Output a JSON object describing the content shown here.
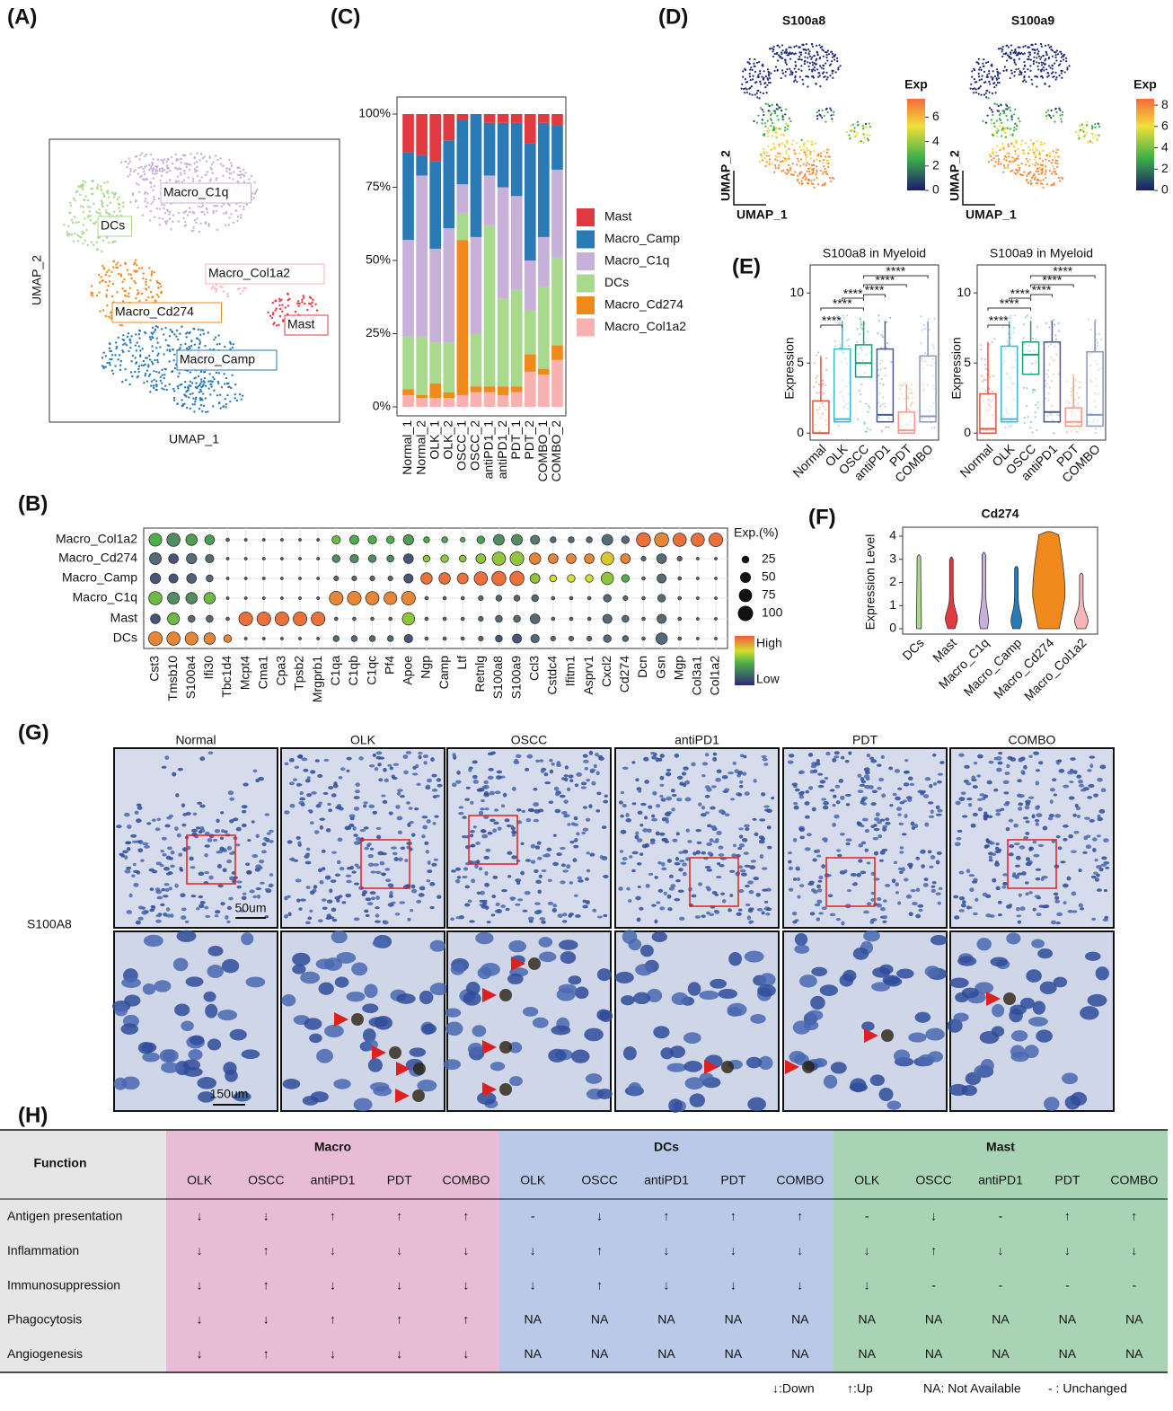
{
  "panel_labels": [
    "(A)",
    "(B)",
    "(C)",
    "(D)",
    "(E)",
    "(F)",
    "(G)",
    "(H)"
  ],
  "umap": {
    "x_label": "UMAP_1",
    "y_label": "UMAP_2",
    "clusters": [
      {
        "name": "Macro_C1q",
        "color": "#c7b1d9"
      },
      {
        "name": "DCs",
        "color": "#a9d98c"
      },
      {
        "name": "Macro_Col1a2",
        "color": "#f5b5b5"
      },
      {
        "name": "Macro_Cd274",
        "color": "#f08a1c"
      },
      {
        "name": "Mast",
        "color": "#e0393f"
      },
      {
        "name": "Macro_Camp",
        "color": "#2a7ab5"
      }
    ]
  },
  "dotplot": {
    "rows": [
      "Macro_Col1a2",
      "Macro_Cd274",
      "Macro_Camp",
      "Macro_C1q",
      "Mast",
      "DCs"
    ],
    "genes": [
      "Cst3",
      "Tmsb10",
      "S100a4",
      "Ifi30",
      "Tbc1d4",
      "Mcpt4",
      "Cma1",
      "Cpa3",
      "Tpsb2",
      "Mrgprb1",
      "C1qa",
      "C1qb",
      "C1qc",
      "Pf4",
      "Apoe",
      "Ngp",
      "Camp",
      "Ltf",
      "Retnlg",
      "S100a8",
      "S100a9",
      "Ccl3",
      "Cstdc4",
      "Ifitm1",
      "Asprv1",
      "Cxcl2",
      "Cd274",
      "Dcn",
      "Gsn",
      "Mgp",
      "Col3a1",
      "Col1a2"
    ],
    "pct": [
      [
        70,
        75,
        55,
        40,
        5,
        3,
        3,
        3,
        3,
        3,
        30,
        35,
        30,
        25,
        45,
        15,
        15,
        10,
        25,
        50,
        50,
        35,
        15,
        15,
        15,
        50,
        25,
        85,
        85,
        75,
        75,
        80
      ],
      [
        60,
        40,
        45,
        30,
        3,
        3,
        3,
        3,
        3,
        3,
        25,
        30,
        25,
        20,
        40,
        20,
        25,
        20,
        40,
        75,
        80,
        55,
        40,
        40,
        40,
        70,
        40,
        10,
        40,
        10,
        3,
        3
      ],
      [
        45,
        35,
        40,
        20,
        3,
        3,
        3,
        3,
        3,
        3,
        10,
        10,
        10,
        10,
        35,
        55,
        55,
        50,
        75,
        85,
        85,
        40,
        20,
        25,
        25,
        65,
        25,
        5,
        35,
        5,
        3,
        3
      ],
      [
        75,
        60,
        55,
        55,
        3,
        3,
        3,
        3,
        3,
        3,
        80,
        80,
        75,
        70,
        80,
        5,
        5,
        5,
        10,
        15,
        15,
        20,
        5,
        5,
        5,
        25,
        10,
        5,
        25,
        5,
        3,
        3
      ],
      [
        40,
        60,
        20,
        20,
        5,
        80,
        80,
        80,
        80,
        80,
        5,
        5,
        5,
        5,
        65,
        5,
        5,
        5,
        10,
        20,
        20,
        40,
        5,
        5,
        5,
        35,
        20,
        5,
        35,
        5,
        3,
        3
      ],
      [
        80,
        75,
        70,
        55,
        25,
        3,
        3,
        3,
        3,
        3,
        15,
        15,
        15,
        15,
        30,
        5,
        5,
        5,
        10,
        20,
        35,
        30,
        10,
        10,
        10,
        25,
        15,
        5,
        55,
        5,
        3,
        3
      ]
    ],
    "exp": [
      [
        0.5,
        0.4,
        0.45,
        0.45,
        0.3,
        0.3,
        0.3,
        0.3,
        0.3,
        0.3,
        0.55,
        0.5,
        0.5,
        0.5,
        0.45,
        0.5,
        0.5,
        0.5,
        0.45,
        0.4,
        0.4,
        0.35,
        0.3,
        0.3,
        0.3,
        0.3,
        0.3,
        0.95,
        0.9,
        0.95,
        0.95,
        0.95
      ],
      [
        0.3,
        0.2,
        0.3,
        0.3,
        0.3,
        0.3,
        0.3,
        0.3,
        0.3,
        0.3,
        0.4,
        0.4,
        0.4,
        0.4,
        0.2,
        0.6,
        0.6,
        0.6,
        0.6,
        0.6,
        0.6,
        0.9,
        0.9,
        0.9,
        0.9,
        0.75,
        0.9,
        0.3,
        0.3,
        0.3,
        0.3,
        0.3
      ],
      [
        0.2,
        0.2,
        0.25,
        0.3,
        0.3,
        0.3,
        0.3,
        0.3,
        0.3,
        0.3,
        0.3,
        0.3,
        0.3,
        0.3,
        0.2,
        0.95,
        0.95,
        0.95,
        0.95,
        0.95,
        0.95,
        0.6,
        0.7,
        0.7,
        0.7,
        0.6,
        0.5,
        0.3,
        0.3,
        0.3,
        0.3,
        0.3
      ],
      [
        0.55,
        0.4,
        0.4,
        0.55,
        0.3,
        0.3,
        0.3,
        0.3,
        0.3,
        0.3,
        0.9,
        0.9,
        0.9,
        0.9,
        0.9,
        0.3,
        0.3,
        0.3,
        0.3,
        0.3,
        0.3,
        0.3,
        0.3,
        0.3,
        0.3,
        0.3,
        0.3,
        0.3,
        0.3,
        0.3,
        0.3,
        0.3
      ],
      [
        0.2,
        0.55,
        0.3,
        0.3,
        0.3,
        0.95,
        0.95,
        0.95,
        0.95,
        0.95,
        0.3,
        0.3,
        0.3,
        0.3,
        0.6,
        0.3,
        0.3,
        0.3,
        0.3,
        0.3,
        0.3,
        0.3,
        0.3,
        0.3,
        0.3,
        0.3,
        0.3,
        0.3,
        0.3,
        0.3,
        0.3,
        0.3
      ],
      [
        0.9,
        0.9,
        0.9,
        0.9,
        0.9,
        0.3,
        0.3,
        0.3,
        0.3,
        0.3,
        0.3,
        0.3,
        0.3,
        0.3,
        0.2,
        0.3,
        0.3,
        0.3,
        0.3,
        0.2,
        0.2,
        0.3,
        0.3,
        0.3,
        0.3,
        0.3,
        0.3,
        0.3,
        0.3,
        0.3,
        0.3,
        0.3
      ]
    ],
    "size_title": "Exp.(%)",
    "size_ticks": [
      25,
      50,
      75,
      100
    ],
    "color_high": "High",
    "color_low": "Low"
  },
  "chart_data": [
    {
      "type": "stacked_bar",
      "categories": [
        "Normal_1",
        "Normal_2",
        "OLK_1",
        "OLK_2",
        "OSCC_1",
        "OSCC_2",
        "antiPD1_1",
        "antiPD1_2",
        "PDT_1",
        "PDT_2",
        "COMBO_1",
        "COMBO_2"
      ],
      "ylim": [
        0,
        100
      ],
      "yticks": [
        {
          "value": 0,
          "label": "0%"
        },
        {
          "value": 25,
          "label": "25%"
        },
        {
          "value": 50,
          "label": "50%"
        },
        {
          "value": 75,
          "label": "75%"
        },
        {
          "value": 100,
          "label": "100%"
        }
      ],
      "series": [
        {
          "name": "Mast",
          "color": "#e0393f",
          "values": [
            13,
            14,
            16,
            9,
            2,
            0,
            3,
            3,
            3,
            10,
            3,
            4
          ]
        },
        {
          "name": "Macro_Camp",
          "color": "#2a7ab5",
          "values": [
            30,
            7,
            30,
            30,
            22,
            42,
            18,
            22,
            25,
            40,
            39,
            15
          ]
        },
        {
          "name": "Macro_C1q",
          "color": "#c7b1d9",
          "values": [
            33,
            55,
            32,
            39,
            10,
            33,
            17,
            38,
            32,
            17,
            17,
            30
          ]
        },
        {
          "name": "DCs",
          "color": "#a9d98c",
          "values": [
            18,
            20,
            14,
            17,
            9,
            18,
            55,
            30,
            33,
            15,
            28,
            30
          ]
        },
        {
          "name": "Macro_Cd274",
          "color": "#f08a1c",
          "values": [
            2,
            1,
            5,
            2,
            53,
            2,
            2,
            3,
            2,
            6,
            2,
            5
          ]
        },
        {
          "name": "Macro_Col1a2",
          "color": "#f7b1b1",
          "values": [
            4,
            3,
            3,
            3,
            4,
            5,
            5,
            4,
            5,
            12,
            11,
            16
          ]
        }
      ]
    },
    {
      "type": "box",
      "title": "S100a8 in Myeloid",
      "y_label": "Expression",
      "ylim": [
        -0.5,
        12
      ],
      "yticks": [
        0,
        5,
        10
      ],
      "categories": [
        "Normal",
        "OLK",
        "OSCC",
        "antiPD1",
        "PDT",
        "COMBO"
      ],
      "colors": [
        "#e8533c",
        "#3cb8d0",
        "#1a9e77",
        "#4b5a8e",
        "#f39b86",
        "#8a95bd"
      ],
      "q1": [
        0,
        0.8,
        4,
        0.8,
        0,
        0.8
      ],
      "median": [
        0,
        1,
        5,
        1.3,
        0.2,
        1.2
      ],
      "q3": [
        2.3,
        6,
        6.3,
        6,
        1.5,
        5.5
      ],
      "whisker_high": [
        5.5,
        8,
        8,
        8,
        3.5,
        8
      ],
      "comparisons": [
        {
          "pair": [
            "Normal",
            "OLK"
          ],
          "label": "****"
        },
        {
          "pair": [
            "Normal",
            "OSCC"
          ],
          "label": "****"
        },
        {
          "pair": [
            "OLK",
            "OSCC"
          ],
          "label": "****"
        },
        {
          "pair": [
            "OSCC",
            "antiPD1"
          ],
          "label": "****"
        },
        {
          "pair": [
            "OSCC",
            "PDT"
          ],
          "label": "****"
        },
        {
          "pair": [
            "OSCC",
            "COMBO"
          ],
          "label": "****"
        }
      ]
    },
    {
      "type": "box",
      "title": "S100a9 in Myeloid",
      "y_label": "Expression",
      "ylim": [
        -0.5,
        12
      ],
      "yticks": [
        0,
        5,
        10
      ],
      "categories": [
        "Normal",
        "OLK",
        "OSCC",
        "antiPD1",
        "PDT",
        "COMBO"
      ],
      "colors": [
        "#e8533c",
        "#3cb8d0",
        "#1a9e77",
        "#4b5a8e",
        "#f39b86",
        "#8a95bd"
      ],
      "q1": [
        0,
        0.8,
        4.2,
        0.8,
        0.5,
        0.5
      ],
      "median": [
        0.3,
        1,
        5.6,
        1.5,
        0.8,
        1.3
      ],
      "q3": [
        2.8,
        6.2,
        6.5,
        6.5,
        1.8,
        5.8
      ],
      "whisker_high": [
        6.5,
        8,
        8,
        8,
        4,
        8
      ],
      "comparisons": [
        {
          "pair": [
            "Normal",
            "OLK"
          ],
          "label": "****"
        },
        {
          "pair": [
            "Normal",
            "OSCC"
          ],
          "label": "****"
        },
        {
          "pair": [
            "OLK",
            "OSCC"
          ],
          "label": "****"
        },
        {
          "pair": [
            "OSCC",
            "antiPD1"
          ],
          "label": "****"
        },
        {
          "pair": [
            "OSCC",
            "PDT"
          ],
          "label": "****"
        },
        {
          "pair": [
            "OSCC",
            "COMBO"
          ],
          "label": "****"
        }
      ]
    },
    {
      "type": "violin",
      "title": "Cd274",
      "y_label": "Expression Level",
      "ylim": [
        0,
        4.3
      ],
      "yticks": [
        0,
        1,
        2,
        3,
        4
      ],
      "categories": [
        "DCs",
        "Mast",
        "Macro_C1q",
        "Macro_Camp",
        "Macro_Cd274",
        "Macro_Col1a2"
      ],
      "colors": [
        "#a9d98c",
        "#e0393f",
        "#c7b1d9",
        "#2a7ab5",
        "#f08a1c",
        "#f5b5b5"
      ],
      "max": [
        3.2,
        3.1,
        3.3,
        2.7,
        4.2,
        2.4
      ]
    }
  ],
  "feature_plots": [
    {
      "title": "S100a8",
      "legend_title": "Exp",
      "lim": [
        0,
        7.5
      ],
      "ticks": [
        0,
        2,
        4,
        6
      ]
    },
    {
      "title": "S100a9",
      "legend_title": "Exp",
      "lim": [
        0,
        8.6
      ],
      "ticks": [
        0,
        2,
        4,
        6,
        8
      ]
    }
  ],
  "feature_axis": {
    "x_label": "UMAP_1",
    "y_label": "UMAP_2"
  },
  "histology": {
    "columns": [
      "Normal",
      "OLK",
      "OSCC",
      "antiPD1",
      "PDT",
      "COMBO"
    ],
    "row_label": "S100A8",
    "scale_top": "50um",
    "scale_bottom": "150um"
  },
  "table": {
    "header": "Function",
    "groups": [
      {
        "name": "Macro",
        "columns": [
          "OLK",
          "OSCC",
          "antiPD1",
          "PDT",
          "COMBO"
        ]
      },
      {
        "name": "DCs",
        "columns": [
          "OLK",
          "OSCC",
          "antiPD1",
          "PDT",
          "COMBO"
        ]
      },
      {
        "name": "Mast",
        "columns": [
          "OLK",
          "OSCC",
          "antiPD1",
          "PDT",
          "COMBO"
        ]
      }
    ],
    "rows": [
      {
        "function": "Antigen presentation",
        "cells": [
          "↓",
          "↓",
          "↑",
          "↑",
          "↑",
          "-",
          "↓",
          "↑",
          "↑",
          "↑",
          "-",
          "↓",
          "-",
          "↑",
          "↑"
        ]
      },
      {
        "function": "Inflammation",
        "cells": [
          "↓",
          "↑",
          "↓",
          "↓",
          "↓",
          "↓",
          "↑",
          "↓",
          "↓",
          "↓",
          "↓",
          "↑",
          "↓",
          "↓",
          "↓"
        ]
      },
      {
        "function": "Immunosuppression",
        "cells": [
          "↓",
          "↑",
          "↓",
          "↓",
          "↓",
          "↓",
          "↑",
          "↓",
          "↓",
          "↓",
          "↓",
          "-",
          "-",
          "-",
          "-"
        ]
      },
      {
        "function": "Phagocytosis",
        "cells": [
          "↓",
          "↓",
          "↑",
          "↑",
          "↑",
          "NA",
          "NA",
          "NA",
          "NA",
          "NA",
          "NA",
          "NA",
          "NA",
          "NA",
          "NA"
        ]
      },
      {
        "function": "Angiogenesis",
        "cells": [
          "↓",
          "↑",
          "↓",
          "↓",
          "↓",
          "NA",
          "NA",
          "NA",
          "NA",
          "NA",
          "NA",
          "NA",
          "NA",
          "NA",
          "NA"
        ]
      }
    ],
    "legend": [
      "↓:Down",
      "↑:Up",
      "NA: Not Available",
      "- : Unchanged"
    ]
  }
}
